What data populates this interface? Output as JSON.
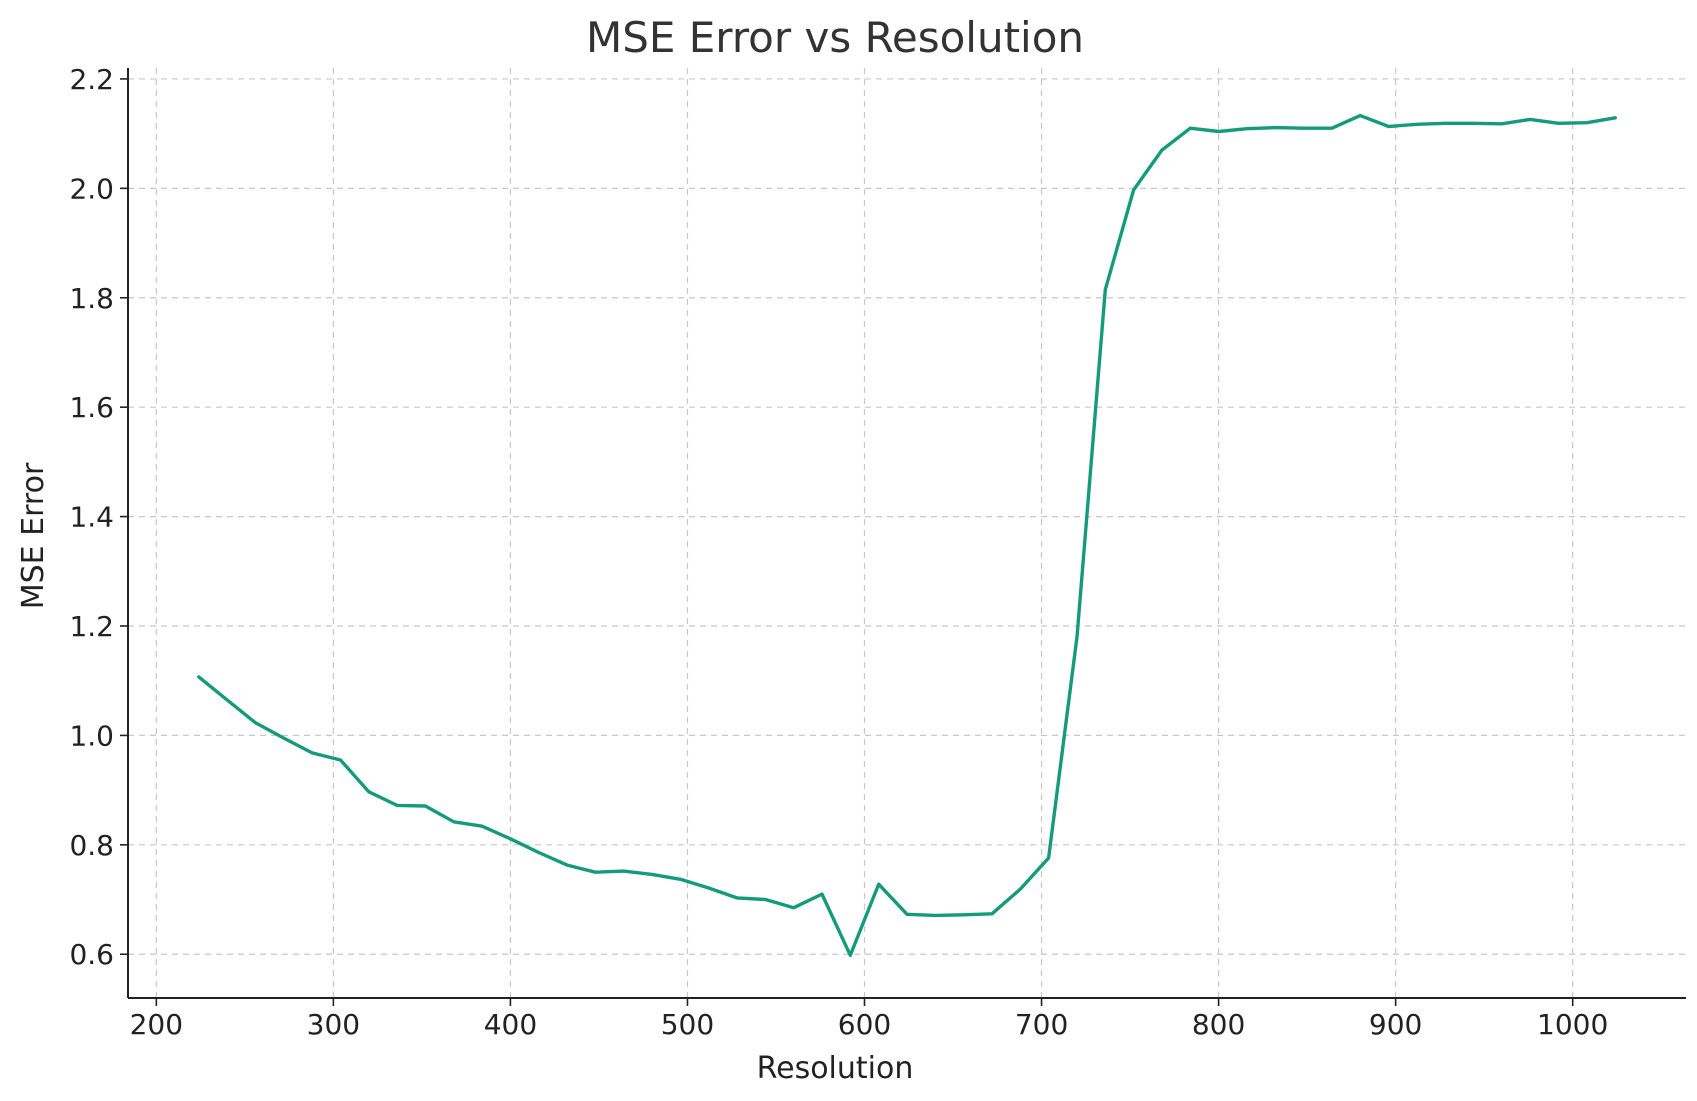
{
  "chart_data": {
    "type": "line",
    "title": "MSE Error vs Resolution",
    "xlabel": "Resolution",
    "ylabel": "MSE Error",
    "xlim": [
      184,
      1064
    ],
    "ylim": [
      0.52,
      2.22
    ],
    "xticks": [
      200,
      300,
      400,
      500,
      600,
      700,
      800,
      900,
      1000
    ],
    "yticks": [
      0.6,
      0.8,
      1.0,
      1.2,
      1.4,
      1.6,
      1.8,
      2.0,
      2.2
    ],
    "xtick_labels": [
      "200",
      "300",
      "400",
      "500",
      "600",
      "700",
      "800",
      "900",
      "1000"
    ],
    "ytick_labels": [
      "0.6",
      "0.8",
      "1.0",
      "1.2",
      "1.4",
      "1.6",
      "1.8",
      "2.0",
      "2.2"
    ],
    "grid": true,
    "legend": "none",
    "series": [
      {
        "color": "#159b7b",
        "x": [
          224,
          240,
          256,
          272,
          288,
          304,
          320,
          336,
          352,
          368,
          384,
          400,
          416,
          432,
          448,
          464,
          480,
          496,
          512,
          528,
          544,
          560,
          576,
          592,
          608,
          624,
          640,
          656,
          672,
          688,
          704,
          720,
          736,
          752,
          768,
          784,
          800,
          816,
          832,
          848,
          864,
          880,
          896,
          912,
          928,
          944,
          960,
          976,
          992,
          1008,
          1024
        ],
        "y": [
          1.107,
          1.065,
          1.023,
          0.995,
          0.968,
          0.955,
          0.897,
          0.872,
          0.871,
          0.842,
          0.834,
          0.811,
          0.786,
          0.763,
          0.75,
          0.752,
          0.746,
          0.737,
          0.721,
          0.703,
          0.7,
          0.685,
          0.71,
          0.598,
          0.728,
          0.673,
          0.671,
          0.672,
          0.674,
          0.719,
          0.776,
          1.18,
          1.815,
          1.997,
          2.07,
          2.11,
          2.104,
          2.109,
          2.111,
          2.11,
          2.11,
          2.133,
          2.113,
          2.117,
          2.119,
          2.119,
          2.118,
          2.126,
          2.119,
          2.12,
          2.129
        ]
      }
    ]
  }
}
